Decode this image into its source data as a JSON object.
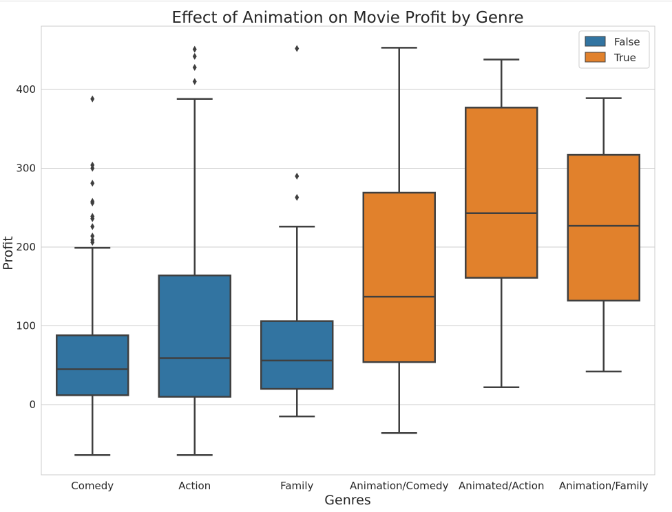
{
  "chart_data": {
    "type": "box",
    "title": "Effect of Animation on Movie Profit by Genre",
    "xlabel": "Genres",
    "ylabel": "Profit",
    "ylim": [
      -90,
      485
    ],
    "yticks": [
      0,
      100,
      200,
      300,
      400
    ],
    "grid": "horizontal",
    "legend": {
      "placement": "top-right",
      "entries": [
        {
          "label": "False",
          "color": "#3274a1"
        },
        {
          "label": "True",
          "color": "#e1812c"
        }
      ]
    },
    "categories": [
      "Comedy",
      "Action",
      "Family",
      "Animation/Comedy",
      "Animated/Action",
      "Animation/Family"
    ],
    "boxes": [
      {
        "category": "Comedy",
        "group": "False",
        "whisker_low": -64,
        "q1": 12,
        "median": 45,
        "q3": 88,
        "whisker_high": 199,
        "outliers": [
          206,
          209,
          214,
          226,
          236,
          239,
          256,
          258,
          281,
          300,
          304,
          388
        ]
      },
      {
        "category": "Action",
        "group": "False",
        "whisker_low": -64,
        "q1": 10,
        "median": 59,
        "q3": 164,
        "whisker_high": 388,
        "outliers": [
          410,
          428,
          442,
          451
        ]
      },
      {
        "category": "Family",
        "group": "False",
        "whisker_low": -15,
        "q1": 20,
        "median": 56,
        "q3": 106,
        "whisker_high": 226,
        "outliers": [
          263,
          290,
          452
        ]
      },
      {
        "category": "Animation/Comedy",
        "group": "True",
        "whisker_low": -36,
        "q1": 54,
        "median": 137,
        "q3": 269,
        "whisker_high": 453,
        "outliers": []
      },
      {
        "category": "Animated/Action",
        "group": "True",
        "whisker_low": 22,
        "q1": 161,
        "median": 243,
        "q3": 377,
        "whisker_high": 438,
        "outliers": []
      },
      {
        "category": "Animation/Family",
        "group": "True",
        "whisker_low": 42,
        "q1": 132,
        "median": 227,
        "q3": 317,
        "whisker_high": 389,
        "outliers": []
      }
    ]
  }
}
